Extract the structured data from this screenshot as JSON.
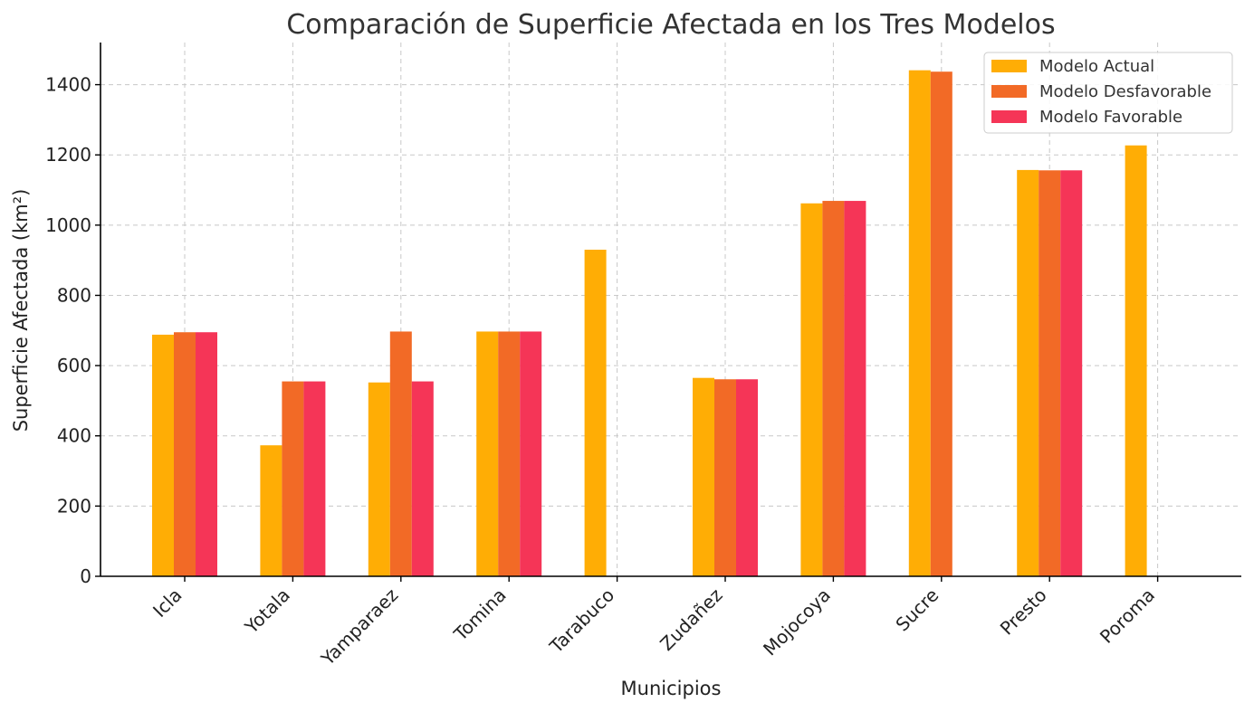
{
  "chart_data": {
    "type": "bar",
    "title": "Comparación de Superficie Afectada en los Tres Modelos",
    "xlabel": "Municipios",
    "ylabel": "Superficie Afectada (km²)",
    "ylim": [
      0,
      1520
    ],
    "yticks": [
      0,
      200,
      400,
      600,
      800,
      1000,
      1200,
      1400
    ],
    "grid": true,
    "legend_position": "top-right",
    "categories": [
      "Icla",
      "Yotala",
      "Yamparaez",
      "Tomina",
      "Tarabuco",
      "Zudañez",
      "Mojocoya",
      "Sucre",
      "Presto",
      "Poroma"
    ],
    "series": [
      {
        "name": "Modelo Actual",
        "color": "#FFAD05",
        "values": [
          688,
          373,
          552,
          697,
          930,
          565,
          1062,
          1441,
          1157,
          1227
        ]
      },
      {
        "name": "Modelo Desfavorable",
        "color": "#F26A26",
        "values": [
          695,
          555,
          697,
          697,
          null,
          561,
          1069,
          1437,
          1156,
          null
        ]
      },
      {
        "name": "Modelo Favorable",
        "color": "#F53557",
        "values": [
          695,
          555,
          555,
          697,
          null,
          561,
          1069,
          null,
          1156,
          null
        ]
      }
    ]
  }
}
